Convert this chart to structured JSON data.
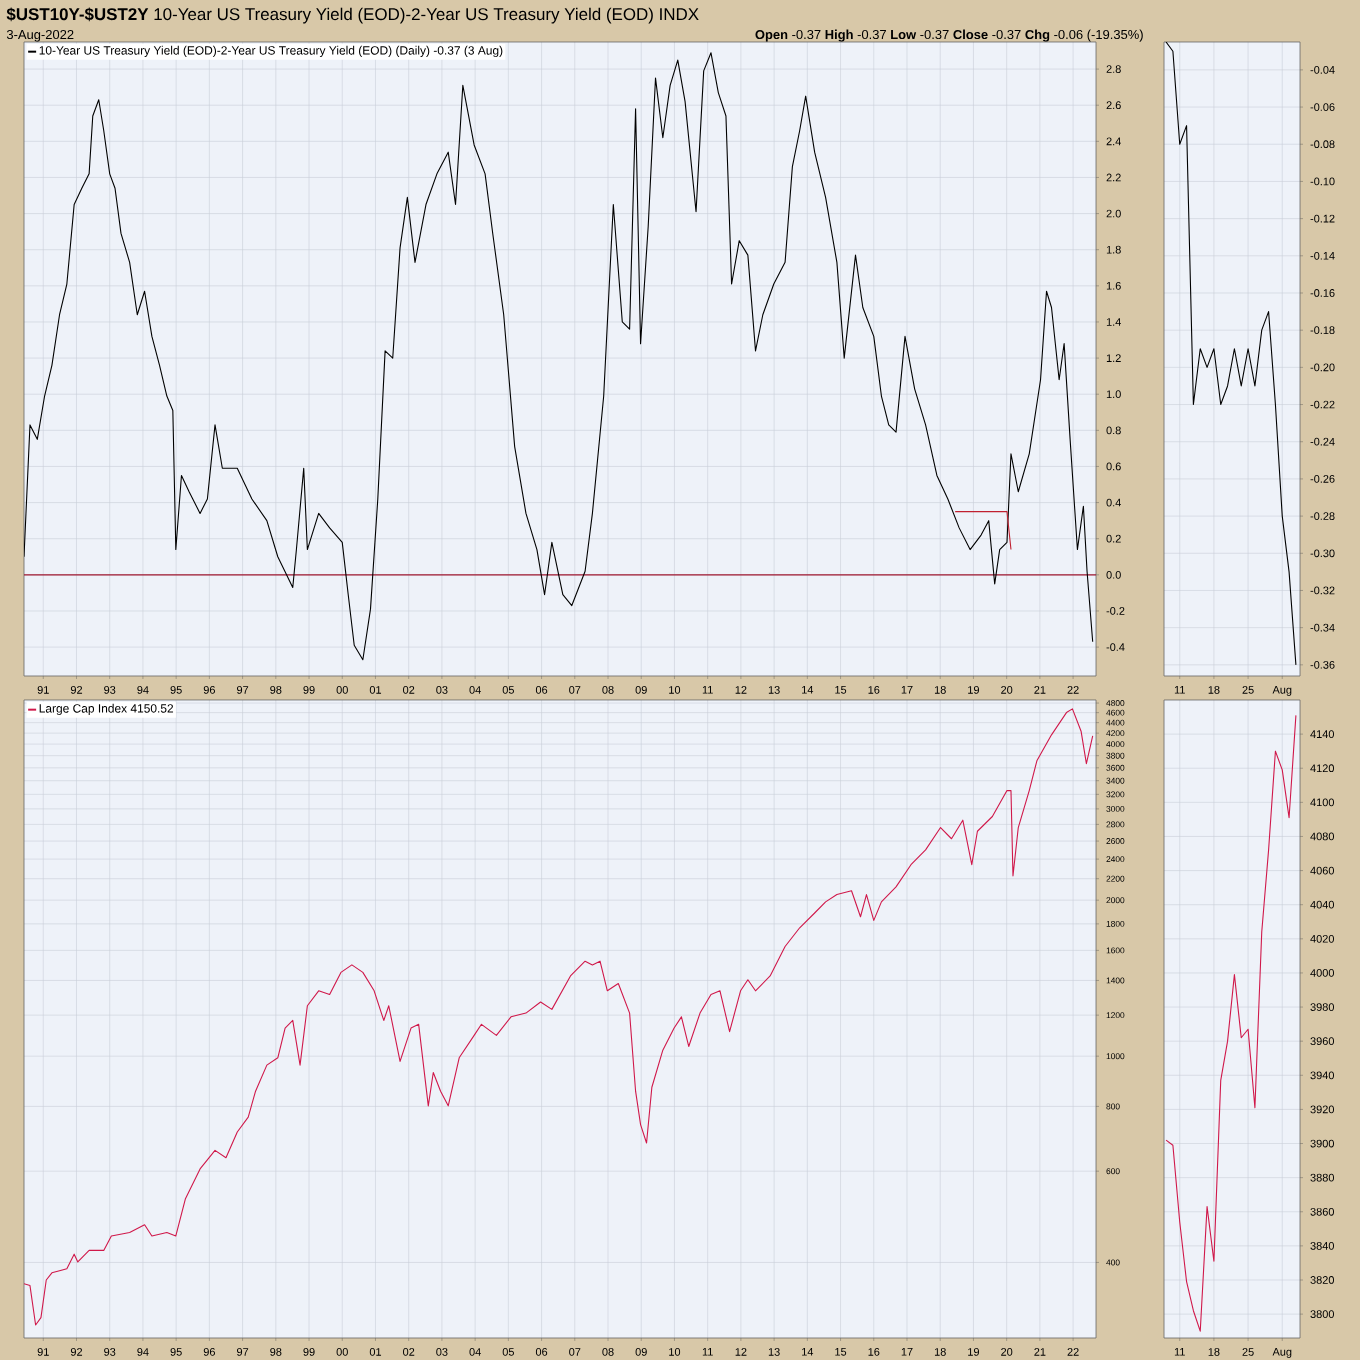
{
  "chart_data": [
    {
      "type": "line",
      "title": "**$UST10Y-$UST2Y** 10-Year US Treasury Yield (EOD)-2-Year US Treasury Yield (EOD) INDX",
      "subtitle": "3-Aug-2022",
      "annotations": [
        "**Open** -0.37 **High** -0.37 **Low** -0.37 **Close** -0.37 **Chg** -0.06 (-19.35%)"
      ],
      "xlim": [
        1990.42,
        2022.69
      ],
      "xticks": [
        {
          "value": 1991,
          "label": "91"
        },
        {
          "value": 1992,
          "label": "92"
        },
        {
          "value": 1993,
          "label": "93"
        },
        {
          "value": 1994,
          "label": "94"
        },
        {
          "value": 1995,
          "label": "95"
        },
        {
          "value": 1996,
          "label": "96"
        },
        {
          "value": 1997,
          "label": "97"
        },
        {
          "value": 1998,
          "label": "98"
        },
        {
          "value": 1999,
          "label": "99"
        },
        {
          "value": 2000,
          "label": "00"
        },
        {
          "value": 2001,
          "label": "01"
        },
        {
          "value": 2002,
          "label": "02"
        },
        {
          "value": 2003,
          "label": "03"
        },
        {
          "value": 2004,
          "label": "04"
        },
        {
          "value": 2005,
          "label": "05"
        },
        {
          "value": 2006,
          "label": "06"
        },
        {
          "value": 2007,
          "label": "07"
        },
        {
          "value": 2008,
          "label": "08"
        },
        {
          "value": 2009,
          "label": "09"
        },
        {
          "value": 2010,
          "label": "10"
        },
        {
          "value": 2011,
          "label": "11"
        },
        {
          "value": 2012,
          "label": "12"
        },
        {
          "value": 2013,
          "label": "13"
        },
        {
          "value": 2014,
          "label": "14"
        },
        {
          "value": 2015,
          "label": "15"
        },
        {
          "value": 2016,
          "label": "16"
        },
        {
          "value": 2017,
          "label": "17"
        },
        {
          "value": 2018,
          "label": "18"
        },
        {
          "value": 2019,
          "label": "19"
        },
        {
          "value": 2020,
          "label": "20"
        },
        {
          "value": 2021,
          "label": "21"
        },
        {
          "value": 2022,
          "label": "22"
        }
      ],
      "ylim": [
        -0.56,
        2.95
      ],
      "yticks": [
        -0.4,
        -0.2,
        {
          "value": 0,
          "label": "0.0"
        },
        0.2,
        0.4,
        0.6,
        0.8,
        {
          "value": 1,
          "label": "1.0"
        },
        1.2,
        1.4,
        1.6,
        1.8,
        {
          "value": 2,
          "label": "2.0"
        },
        2.2,
        2.4,
        2.6,
        2.8
      ],
      "grid": true,
      "legend": "top left",
      "ref_lines": [
        {
          "axis": "y",
          "value": 0,
          "color": "#a01830"
        }
      ],
      "series": [
        {
          "name": "10-Year US Treasury Yield (EOD)-2-Year US Treasury Yield (EOD) (Daily) -0.37 (3 Aug)",
          "color": "#000000",
          "x": [
            1990.42,
            1990.6,
            1990.82,
            1991.04,
            1991.26,
            1991.49,
            1991.71,
            1991.93,
            1992.16,
            1992.38,
            1992.49,
            1992.67,
            1992.82,
            1993.0,
            1993.16,
            1993.34,
            1993.6,
            1993.83,
            1994.05,
            1994.27,
            1994.5,
            1994.72,
            1994.9,
            1994.99,
            1995.16,
            1995.39,
            1995.72,
            1995.94,
            1996.17,
            1996.39,
            1996.84,
            1997.28,
            1997.73,
            1998.06,
            1998.51,
            1998.62,
            1998.84,
            1998.95,
            1999.29,
            1999.62,
            2000.0,
            2000.18,
            2000.36,
            2000.62,
            2000.85,
            2001.07,
            2001.29,
            2001.52,
            2001.74,
            2001.96,
            2002.19,
            2002.52,
            2002.85,
            2003.19,
            2003.41,
            2003.63,
            2003.97,
            2004.3,
            2004.53,
            2004.86,
            2005.19,
            2005.53,
            2005.86,
            2006.09,
            2006.31,
            2006.64,
            2006.91,
            2007.31,
            2007.53,
            2007.87,
            2008.16,
            2008.43,
            2008.65,
            2008.83,
            2008.98,
            2009.21,
            2009.43,
            2009.65,
            2009.87,
            2010.1,
            2010.32,
            2010.65,
            2010.88,
            2011.1,
            2011.32,
            2011.55,
            2011.72,
            2011.95,
            2012.21,
            2012.44,
            2012.66,
            2012.99,
            2013.33,
            2013.55,
            2013.77,
            2013.95,
            2014.22,
            2014.55,
            2014.89,
            2015.11,
            2015.45,
            2015.67,
            2016.0,
            2016.23,
            2016.45,
            2016.67,
            2016.94,
            2017.23,
            2017.56,
            2017.9,
            2018.23,
            2018.57,
            2018.9,
            2019.23,
            2019.46,
            2019.64,
            2019.79,
            2020.01,
            2020.13,
            2020.35,
            2020.68,
            2021.02,
            2021.2,
            2021.35,
            2021.58,
            2021.73,
            2021.91,
            2022.13,
            2022.31,
            2022.42,
            2022.59
          ],
          "values": [
            0.1,
            0.83,
            0.75,
            0.99,
            1.16,
            1.44,
            1.61,
            2.05,
            2.14,
            2.22,
            2.54,
            2.63,
            2.46,
            2.22,
            2.14,
            1.89,
            1.73,
            1.44,
            1.57,
            1.32,
            1.16,
            0.99,
            0.91,
            0.14,
            0.55,
            0.46,
            0.34,
            0.42,
            0.83,
            0.59,
            0.59,
            0.42,
            0.3,
            0.1,
            -0.07,
            0.14,
            0.59,
            0.14,
            0.34,
            0.26,
            0.18,
            -0.11,
            -0.39,
            -0.47,
            -0.19,
            0.42,
            1.24,
            1.2,
            1.81,
            2.09,
            1.73,
            2.05,
            2.22,
            2.34,
            2.05,
            2.71,
            2.38,
            2.22,
            1.89,
            1.44,
            0.71,
            0.34,
            0.14,
            -0.11,
            0.18,
            -0.11,
            -0.17,
            0.02,
            0.34,
            0.99,
            2.05,
            1.4,
            1.36,
            2.58,
            1.28,
            1.93,
            2.75,
            2.42,
            2.71,
            2.85,
            2.62,
            2.01,
            2.79,
            2.89,
            2.67,
            2.54,
            1.61,
            1.85,
            1.77,
            1.24,
            1.44,
            1.61,
            1.73,
            2.26,
            2.46,
            2.65,
            2.34,
            2.09,
            1.73,
            1.2,
            1.77,
            1.48,
            1.32,
            0.99,
            0.83,
            0.79,
            1.32,
            1.03,
            0.83,
            0.55,
            0.42,
            0.26,
            0.14,
            0.22,
            0.3,
            -0.05,
            0.14,
            0.18,
            0.67,
            0.46,
            0.67,
            1.08,
            1.57,
            1.48,
            1.08,
            1.28,
            0.75,
            0.14,
            0.38,
            0.02,
            -0.37
          ]
        },
        {
          "type": "line",
          "color": "#c02030",
          "x": [
            2018.45,
            2020.01,
            2020.13
          ],
          "values": [
            0.35,
            0.35,
            0.14
          ]
        }
      ]
    },
    {
      "type": "line",
      "categories": [
        null,
        null,
        "11",
        null,
        null,
        null,
        null,
        "18",
        null,
        null,
        null,
        null,
        "25",
        null,
        null,
        null,
        null,
        "Aug",
        null,
        null
      ],
      "ylim": [
        -0.366,
        -0.025
      ],
      "yticks": [
        -0.04,
        -0.06,
        -0.08,
        {
          "value": -0.1,
          "label": "-0.10"
        },
        -0.12,
        -0.14,
        -0.16,
        -0.18,
        {
          "value": -0.2,
          "label": "-0.20"
        },
        -0.22,
        -0.24,
        -0.26,
        -0.28,
        {
          "value": -0.3,
          "label": "-0.30"
        },
        -0.32,
        -0.34,
        -0.36
      ],
      "grid": true,
      "series": [
        {
          "color": "#000000",
          "values": [
            -0.025,
            -0.03,
            -0.08,
            -0.07,
            -0.22,
            -0.19,
            -0.2,
            -0.19,
            -0.22,
            -0.21,
            -0.19,
            -0.21,
            -0.19,
            -0.21,
            -0.18,
            -0.17,
            -0.22,
            -0.28,
            -0.31,
            -0.36
          ]
        }
      ]
    },
    {
      "type": "line",
      "xlim": [
        1990.42,
        2022.69
      ],
      "xticks": [
        {
          "value": 1991,
          "label": "91"
        },
        {
          "value": 1992,
          "label": "92"
        },
        {
          "value": 1993,
          "label": "93"
        },
        {
          "value": 1994,
          "label": "94"
        },
        {
          "value": 1995,
          "label": "95"
        },
        {
          "value": 1996,
          "label": "96"
        },
        {
          "value": 1997,
          "label": "97"
        },
        {
          "value": 1998,
          "label": "98"
        },
        {
          "value": 1999,
          "label": "99"
        },
        {
          "value": 2000,
          "label": "00"
        },
        {
          "value": 2001,
          "label": "01"
        },
        {
          "value": 2002,
          "label": "02"
        },
        {
          "value": 2003,
          "label": "03"
        },
        {
          "value": 2004,
          "label": "04"
        },
        {
          "value": 2005,
          "label": "05"
        },
        {
          "value": 2006,
          "label": "06"
        },
        {
          "value": 2007,
          "label": "07"
        },
        {
          "value": 2008,
          "label": "08"
        },
        {
          "value": 2009,
          "label": "09"
        },
        {
          "value": 2010,
          "label": "10"
        },
        {
          "value": 2011,
          "label": "11"
        },
        {
          "value": 2012,
          "label": "12"
        },
        {
          "value": 2013,
          "label": "13"
        },
        {
          "value": 2014,
          "label": "14"
        },
        {
          "value": 2015,
          "label": "15"
        },
        {
          "value": 2016,
          "label": "16"
        },
        {
          "value": 2017,
          "label": "17"
        },
        {
          "value": 2018,
          "label": "18"
        },
        {
          "value": 2019,
          "label": "19"
        },
        {
          "value": 2020,
          "label": "20"
        },
        {
          "value": 2021,
          "label": "21"
        },
        {
          "value": 2022,
          "label": "22"
        }
      ],
      "ylim": [
        286,
        4866
      ],
      "log": true,
      "yticks": [
        400,
        600,
        800,
        1000,
        1200,
        1400,
        1600,
        1800,
        2000,
        2200,
        2400,
        2600,
        2800,
        3000,
        3200,
        3400,
        3600,
        3800,
        4000,
        4200,
        4400,
        4600,
        4800
      ],
      "grid": true,
      "legend": "top left",
      "series": [
        {
          "name": "Large Cap Index 4150.52",
          "color": "#d0184a",
          "x": [
            1990.42,
            1990.6,
            1990.77,
            1990.93,
            1991.09,
            1991.26,
            1991.71,
            1991.93,
            1992.04,
            1992.38,
            1992.82,
            1993.05,
            1993.6,
            1994.05,
            1994.27,
            1994.72,
            1994.99,
            1995.28,
            1995.72,
            1996.17,
            1996.5,
            1996.84,
            1997.17,
            1997.39,
            1997.73,
            1998.06,
            1998.28,
            1998.51,
            1998.73,
            1998.95,
            1999.29,
            1999.62,
            1999.96,
            2000.29,
            2000.62,
            2000.96,
            2001.25,
            2001.4,
            2001.74,
            2002.07,
            2002.3,
            2002.59,
            2002.74,
            2002.96,
            2003.19,
            2003.52,
            2003.97,
            2004.19,
            2004.64,
            2005.08,
            2005.53,
            2005.97,
            2006.31,
            2006.87,
            2007.31,
            2007.53,
            2007.76,
            2007.98,
            2008.31,
            2008.65,
            2008.83,
            2008.98,
            2009.16,
            2009.32,
            2009.65,
            2009.99,
            2010.21,
            2010.43,
            2010.77,
            2011.1,
            2011.37,
            2011.66,
            2011.99,
            2012.21,
            2012.44,
            2012.88,
            2013.33,
            2013.77,
            2014.22,
            2014.55,
            2014.89,
            2015.33,
            2015.6,
            2015.78,
            2016.0,
            2016.23,
            2016.67,
            2017.12,
            2017.56,
            2018.01,
            2018.34,
            2018.68,
            2018.95,
            2019.12,
            2019.57,
            2020.01,
            2020.13,
            2020.19,
            2020.35,
            2020.68,
            2020.91,
            2021.35,
            2021.8,
            2021.98,
            2022.24,
            2022.4,
            2022.59
          ],
          "values": [
            364,
            361,
            303,
            313,
            370,
            382,
            389,
            415,
            401,
            422,
            422,
            450,
            457,
            473,
            450,
            457,
            450,
            531,
            606,
            658,
            637,
            714,
            763,
            856,
            961,
            993,
            1133,
            1172,
            961,
            1251,
            1337,
            1315,
            1451,
            1500,
            1451,
            1337,
            1172,
            1251,
            977,
            1133,
            1152,
            802,
            930,
            856,
            802,
            993,
            1097,
            1152,
            1097,
            1191,
            1211,
            1272,
            1231,
            1428,
            1525,
            1500,
            1525,
            1337,
            1381,
            1211,
            856,
            738,
            680,
            871,
            1027,
            1133,
            1191,
            1044,
            1211,
            1315,
            1337,
            1115,
            1337,
            1404,
            1337,
            1428,
            1628,
            1769,
            1889,
            1985,
            2050,
            2085,
            1858,
            2050,
            1828,
            1985,
            2121,
            2341,
            2500,
            2761,
            2627,
            2853,
            2341,
            2716,
            2900,
            3254,
            3254,
            2228,
            2761,
            3254,
            3714,
            4168,
            4601,
            4677,
            4236,
            3667,
            4151
          ]
        }
      ]
    },
    {
      "type": "line",
      "categories": [
        null,
        null,
        "11",
        null,
        null,
        null,
        null,
        "18",
        null,
        null,
        null,
        null,
        "25",
        null,
        null,
        null,
        null,
        "Aug",
        null,
        null
      ],
      "ylim": [
        3786,
        4160
      ],
      "yticks": [
        3800,
        3820,
        3840,
        3860,
        3880,
        3900,
        3920,
        3940,
        3960,
        3980,
        4000,
        4020,
        4040,
        4060,
        4080,
        4100,
        4120,
        4140
      ],
      "grid": true,
      "series": [
        {
          "color": "#d0184a",
          "values": [
            3902,
            3899,
            3854,
            3819,
            3802,
            3790,
            3863,
            3831,
            3937,
            3960,
            3999,
            3962,
            3967,
            3921,
            4024,
            4072,
            4130,
            4119,
            4091,
            4151
          ]
        }
      ]
    }
  ]
}
